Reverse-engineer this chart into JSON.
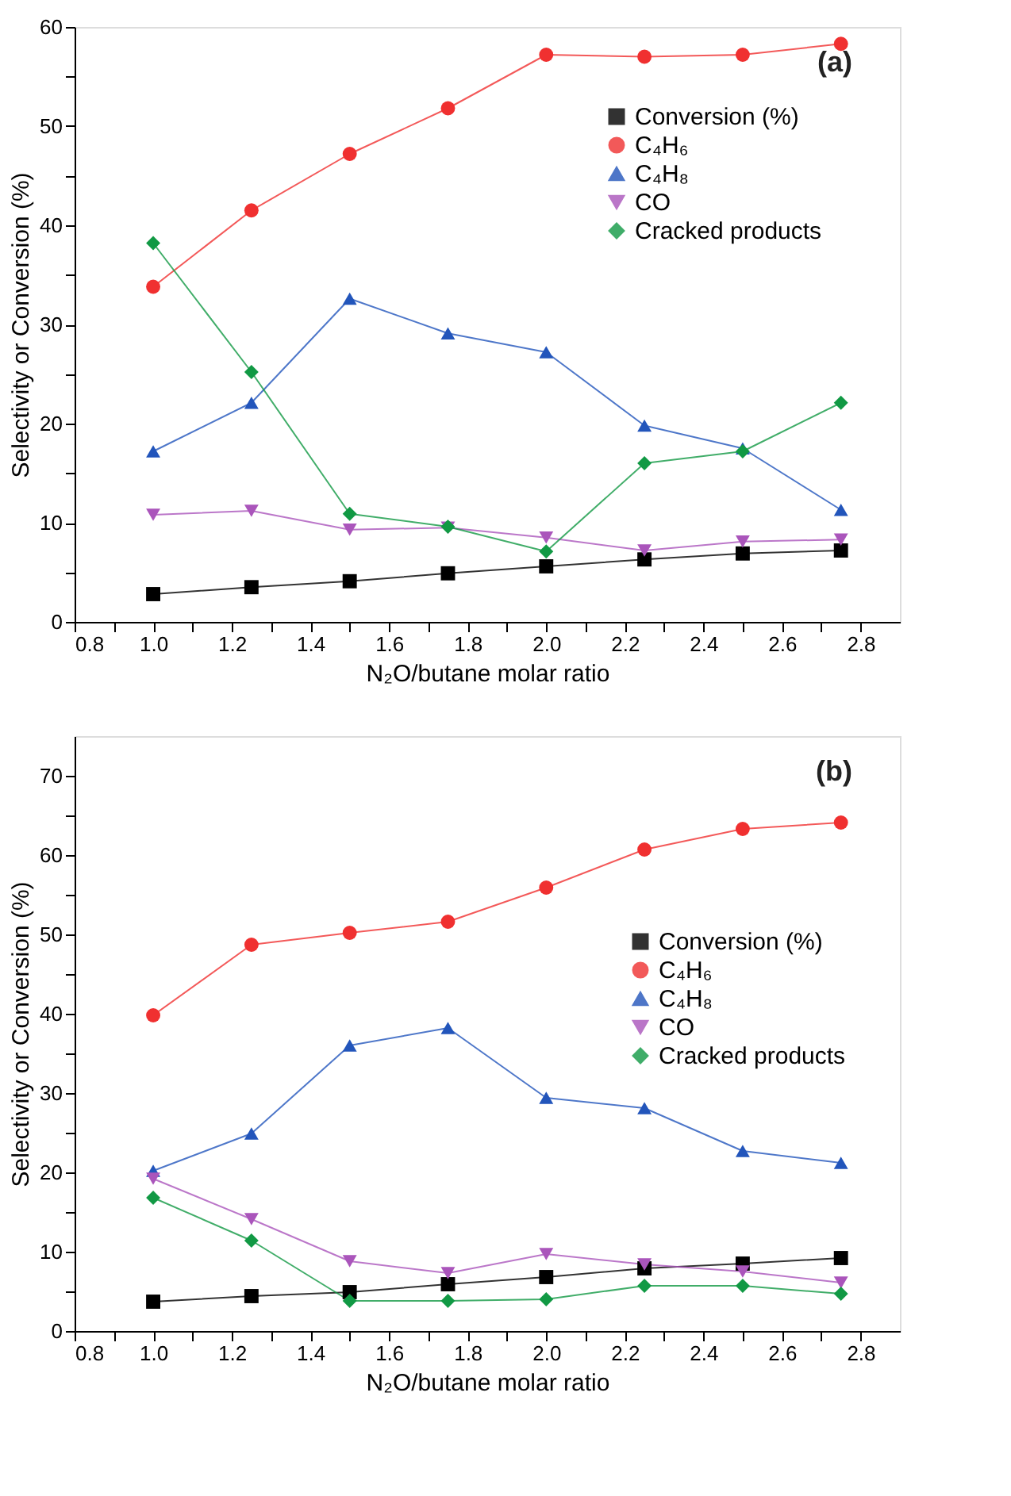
{
  "chart_data": [
    {
      "type": "line",
      "xlabel": "N₂O/butane molar ratio",
      "ylabel": "Selectivity or Conversion (%)",
      "annotations": [
        "(a)"
      ],
      "legend": "top right",
      "grid": false,
      "line_style": "solid",
      "x": [
        1.0,
        1.25,
        1.5,
        1.75,
        2.0,
        2.25,
        2.5,
        2.75
      ],
      "xlim": [
        0.8,
        2.9
      ],
      "ylim": [
        0,
        60
      ],
      "xticks": [
        {
          "value": 0.8,
          "label": "0.8"
        },
        {
          "value": 0.9,
          "label": null
        },
        {
          "value": 1.0,
          "label": "1.0"
        },
        {
          "value": 1.1,
          "label": null
        },
        {
          "value": 1.2,
          "label": "1.2"
        },
        {
          "value": 1.3,
          "label": null
        },
        {
          "value": 1.4,
          "label": "1.4"
        },
        {
          "value": 1.5,
          "label": null
        },
        {
          "value": 1.6,
          "label": "1.6"
        },
        {
          "value": 1.7,
          "label": null
        },
        {
          "value": 1.8,
          "label": "1.8"
        },
        {
          "value": 1.9,
          "label": null
        },
        {
          "value": 2.0,
          "label": "2.0"
        },
        {
          "value": 2.1,
          "label": null
        },
        {
          "value": 2.2,
          "label": "2.2"
        },
        {
          "value": 2.3,
          "label": null
        },
        {
          "value": 2.4,
          "label": "2.4"
        },
        {
          "value": 2.5,
          "label": null
        },
        {
          "value": 2.6,
          "label": "2.6"
        },
        {
          "value": 2.7,
          "label": null
        },
        {
          "value": 2.8,
          "label": "2.8"
        }
      ],
      "yticks": [
        0,
        {
          "value": 5,
          "label": null
        },
        10,
        {
          "value": 15,
          "label": null
        },
        20,
        {
          "value": 25,
          "label": null
        },
        30,
        {
          "value": 35,
          "label": null
        },
        40,
        {
          "value": 45,
          "label": null
        },
        50,
        {
          "value": 55,
          "label": null
        },
        60
      ],
      "series": [
        {
          "name": "Conversion (%)",
          "color": "#000000",
          "marker": "square",
          "values": [
            2.8,
            3.5,
            4.1,
            4.9,
            5.6,
            6.3,
            6.9,
            7.2
          ]
        },
        {
          "name": "C₄H₆",
          "color": "#f03030",
          "marker": "circle",
          "values": [
            33.8,
            41.5,
            47.2,
            51.8,
            57.2,
            57.0,
            57.2,
            58.3
          ]
        },
        {
          "name": "C₄H₈",
          "color": "#2255bb",
          "marker": "triangle",
          "values": [
            17.2,
            22.1,
            32.6,
            29.1,
            27.2,
            19.8,
            17.5,
            11.3
          ]
        },
        {
          "name": "CO",
          "color": "#aa55bb",
          "marker": "triangle-down",
          "values": [
            10.8,
            11.2,
            9.3,
            9.5,
            8.5,
            7.2,
            8.1,
            8.3
          ]
        },
        {
          "name": "Cracked products",
          "color": "#119944",
          "marker": "diamond",
          "values": [
            38.2,
            25.2,
            10.9,
            9.6,
            7.1,
            16.0,
            17.2,
            22.1
          ]
        }
      ]
    },
    {
      "type": "line",
      "xlabel": "N₂O/butane molar ratio",
      "ylabel": "Selectivity or Conversion (%)",
      "annotations": [
        "(b)"
      ],
      "legend": "top right",
      "grid": false,
      "line_style": "solid",
      "x": [
        1.0,
        1.25,
        1.5,
        1.75,
        2.0,
        2.25,
        2.5,
        2.75
      ],
      "xlim": [
        0.8,
        2.9
      ],
      "ylim": [
        0,
        75
      ],
      "xticks": [
        {
          "value": 0.8,
          "label": "0.8"
        },
        {
          "value": 0.9,
          "label": null
        },
        {
          "value": 1.0,
          "label": "1.0"
        },
        {
          "value": 1.1,
          "label": null
        },
        {
          "value": 1.2,
          "label": "1.2"
        },
        {
          "value": 1.3,
          "label": null
        },
        {
          "value": 1.4,
          "label": "1.4"
        },
        {
          "value": 1.5,
          "label": null
        },
        {
          "value": 1.6,
          "label": "1.6"
        },
        {
          "value": 1.7,
          "label": null
        },
        {
          "value": 1.8,
          "label": "1.8"
        },
        {
          "value": 1.9,
          "label": null
        },
        {
          "value": 2.0,
          "label": "2.0"
        },
        {
          "value": 2.1,
          "label": null
        },
        {
          "value": 2.2,
          "label": "2.2"
        },
        {
          "value": 2.3,
          "label": null
        },
        {
          "value": 2.4,
          "label": "2.4"
        },
        {
          "value": 2.5,
          "label": null
        },
        {
          "value": 2.6,
          "label": "2.6"
        },
        {
          "value": 2.7,
          "label": null
        },
        {
          "value": 2.8,
          "label": "2.8"
        }
      ],
      "yticks": [
        0,
        {
          "value": 5,
          "label": null
        },
        10,
        {
          "value": 15,
          "label": null
        },
        20,
        {
          "value": 25,
          "label": null
        },
        30,
        {
          "value": 35,
          "label": null
        },
        40,
        {
          "value": 45,
          "label": null
        },
        50,
        {
          "value": 55,
          "label": null
        },
        60,
        {
          "value": 65,
          "label": null
        },
        70
      ],
      "series": [
        {
          "name": "Conversion (%)",
          "color": "#000000",
          "marker": "square",
          "values": [
            3.7,
            4.4,
            4.9,
            5.9,
            6.8,
            7.9,
            8.5,
            9.2
          ]
        },
        {
          "name": "C₄H₆",
          "color": "#f03030",
          "marker": "circle",
          "values": [
            39.8,
            48.7,
            50.2,
            51.6,
            55.9,
            60.7,
            63.3,
            64.1
          ]
        },
        {
          "name": "C₄H₈",
          "color": "#2255bb",
          "marker": "triangle",
          "values": [
            20.2,
            24.9,
            36.0,
            38.2,
            29.4,
            28.1,
            22.7,
            21.2
          ]
        },
        {
          "name": "CO",
          "color": "#aa55bb",
          "marker": "triangle-down",
          "values": [
            19.2,
            14.1,
            8.8,
            7.3,
            9.7,
            8.4,
            7.5,
            6.1
          ]
        },
        {
          "name": "Cracked products",
          "color": "#119944",
          "marker": "diamond",
          "values": [
            16.8,
            11.4,
            3.8,
            3.8,
            4.0,
            5.7,
            5.7,
            4.7
          ]
        }
      ]
    }
  ]
}
